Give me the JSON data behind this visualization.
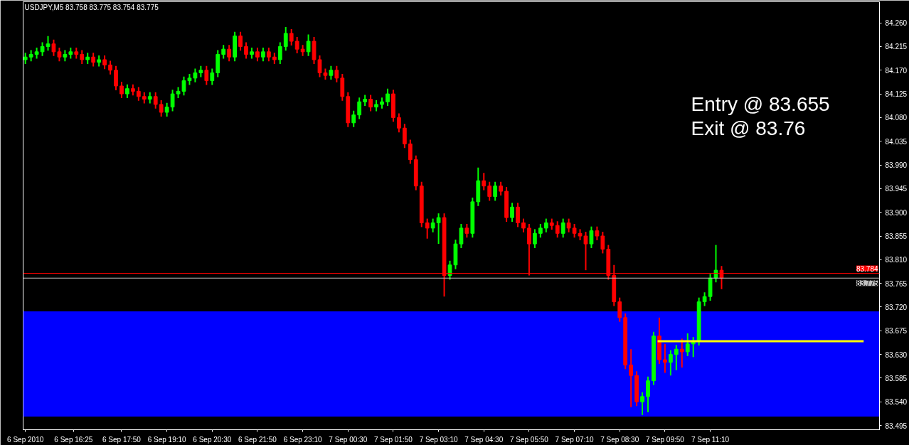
{
  "chart_data": {
    "type": "candlestick",
    "title": "USDJPY,M5 83.758 83.775 83.754 83.775",
    "annotations": [
      "Entry @ 83.655",
      "Exit @ 83.76"
    ],
    "xlim": [
      "2010-09-06T14:56",
      "2010-09-07T16:09"
    ],
    "ylim": [
      83.487,
      84.3
    ],
    "xticks": [
      {
        "value": "2010-09-06T15:00",
        "label": "6 Sep 2010"
      },
      {
        "value": "2010-09-06T16:25",
        "label": "6 Sep 16:25"
      },
      {
        "value": "2010-09-06T17:50",
        "label": "6 Sep 17:50"
      },
      {
        "value": "2010-09-06T19:10",
        "label": "6 Sep 19:10"
      },
      {
        "value": "2010-09-06T20:30",
        "label": "6 Sep 20:30"
      },
      {
        "value": "2010-09-06T21:50",
        "label": "6 Sep 21:50"
      },
      {
        "value": "2010-09-06T23:10",
        "label": "6 Sep 23:10"
      },
      {
        "value": "2010-09-07T00:30",
        "label": "7 Sep 00:30"
      },
      {
        "value": "2010-09-07T01:50",
        "label": "7 Sep 01:50"
      },
      {
        "value": "2010-09-07T03:10",
        "label": "7 Sep 03:10"
      },
      {
        "value": "2010-09-07T04:30",
        "label": "7 Sep 04:30"
      },
      {
        "value": "2010-09-07T05:50",
        "label": "7 Sep 05:50"
      },
      {
        "value": "2010-09-07T07:10",
        "label": "7 Sep 07:10"
      },
      {
        "value": "2010-09-07T08:30",
        "label": "7 Sep 08:30"
      },
      {
        "value": "2010-09-07T09:50",
        "label": "7 Sep 09:50"
      },
      {
        "value": "2010-09-07T11:10",
        "label": "7 Sep 11:10"
      }
    ],
    "yticks": [
      {
        "value": 83.495,
        "label": "83.495"
      },
      {
        "value": 83.54,
        "label": "83.540"
      },
      {
        "value": 83.585,
        "label": "83.585"
      },
      {
        "value": 83.63,
        "label": "83.630"
      },
      {
        "value": 83.675,
        "label": "83.675"
      },
      {
        "value": 83.72,
        "label": "83.720"
      },
      {
        "value": 83.765,
        "label": "83.765"
      },
      {
        "value": 83.81,
        "label": "83.810"
      },
      {
        "value": 83.855,
        "label": "83.855"
      },
      {
        "value": 83.9,
        "label": "83.900"
      },
      {
        "value": 83.945,
        "label": "83.945"
      },
      {
        "value": 83.99,
        "label": "83.990"
      },
      {
        "value": 84.035,
        "label": "84.035"
      },
      {
        "value": 84.08,
        "label": "84.080"
      },
      {
        "value": 84.125,
        "label": "84.125"
      },
      {
        "value": 84.17,
        "label": "84.170"
      },
      {
        "value": 84.215,
        "label": "84.215"
      },
      {
        "value": 84.26,
        "label": "84.260"
      }
    ],
    "grid": false,
    "bands": [
      {
        "axis": "y",
        "from": 83.512,
        "to": 83.712,
        "color": "#0000ff"
      }
    ],
    "ref_lines": [
      {
        "axis": "y",
        "value": 83.784,
        "label": "83.784",
        "color": "#ff0000"
      },
      {
        "axis": "y",
        "value": 83.775,
        "label": "83.775",
        "color": "#c0c0c0"
      }
    ],
    "series": [
      {
        "type": "candlestick",
        "x": [
          "2010-09-06T15:00",
          "2010-09-06T15:10",
          "2010-09-06T15:20",
          "2010-09-06T15:30",
          "2010-09-06T15:40",
          "2010-09-06T15:50",
          "2010-09-06T16:00",
          "2010-09-06T16:10",
          "2010-09-06T16:20",
          "2010-09-06T16:30",
          "2010-09-06T16:40",
          "2010-09-06T16:50",
          "2010-09-06T17:00",
          "2010-09-06T17:10",
          "2010-09-06T17:20",
          "2010-09-06T17:30",
          "2010-09-06T17:40",
          "2010-09-06T17:50",
          "2010-09-06T18:00",
          "2010-09-06T18:10",
          "2010-09-06T18:20",
          "2010-09-06T18:30",
          "2010-09-06T18:40",
          "2010-09-06T18:50",
          "2010-09-06T19:00",
          "2010-09-06T19:10",
          "2010-09-06T19:20",
          "2010-09-06T19:30",
          "2010-09-06T19:40",
          "2010-09-06T19:50",
          "2010-09-06T20:00",
          "2010-09-06T20:10",
          "2010-09-06T20:20",
          "2010-09-06T20:30",
          "2010-09-06T20:40",
          "2010-09-06T20:50",
          "2010-09-06T21:00",
          "2010-09-06T21:10",
          "2010-09-06T21:20",
          "2010-09-06T21:30",
          "2010-09-06T21:40",
          "2010-09-06T21:50",
          "2010-09-06T22:00",
          "2010-09-06T22:10",
          "2010-09-06T22:20",
          "2010-09-06T22:30",
          "2010-09-06T22:40",
          "2010-09-06T22:50",
          "2010-09-06T23:00",
          "2010-09-06T23:10",
          "2010-09-06T23:20",
          "2010-09-06T23:30",
          "2010-09-06T23:40",
          "2010-09-06T23:50",
          "2010-09-07T00:00",
          "2010-09-07T00:10",
          "2010-09-07T00:20",
          "2010-09-07T00:30",
          "2010-09-07T00:40",
          "2010-09-07T00:50",
          "2010-09-07T01:00",
          "2010-09-07T01:10",
          "2010-09-07T01:20",
          "2010-09-07T01:30",
          "2010-09-07T01:40",
          "2010-09-07T01:50",
          "2010-09-07T02:00",
          "2010-09-07T02:10",
          "2010-09-07T02:20",
          "2010-09-07T02:30",
          "2010-09-07T02:40",
          "2010-09-07T02:50",
          "2010-09-07T03:00",
          "2010-09-07T03:10",
          "2010-09-07T03:20",
          "2010-09-07T03:30",
          "2010-09-07T03:40",
          "2010-09-07T03:50",
          "2010-09-07T04:00",
          "2010-09-07T04:10",
          "2010-09-07T04:20",
          "2010-09-07T04:30",
          "2010-09-07T04:40",
          "2010-09-07T04:50",
          "2010-09-07T05:00",
          "2010-09-07T05:10",
          "2010-09-07T05:20",
          "2010-09-07T05:30",
          "2010-09-07T05:40",
          "2010-09-07T05:50",
          "2010-09-07T06:00",
          "2010-09-07T06:10",
          "2010-09-07T06:20",
          "2010-09-07T06:30",
          "2010-09-07T06:40",
          "2010-09-07T06:50",
          "2010-09-07T07:00",
          "2010-09-07T07:10",
          "2010-09-07T07:20",
          "2010-09-07T07:30",
          "2010-09-07T07:40",
          "2010-09-07T07:50",
          "2010-09-07T08:00",
          "2010-09-07T08:10",
          "2010-09-07T08:20",
          "2010-09-07T08:30",
          "2010-09-07T08:40",
          "2010-09-07T08:50",
          "2010-09-07T09:00",
          "2010-09-07T09:10",
          "2010-09-07T09:20",
          "2010-09-07T09:30",
          "2010-09-07T09:40",
          "2010-09-07T09:50",
          "2010-09-07T10:00",
          "2010-09-07T10:10",
          "2010-09-07T10:20",
          "2010-09-07T10:30",
          "2010-09-07T10:40",
          "2010-09-07T10:50",
          "2010-09-07T11:00",
          "2010-09-07T11:10",
          "2010-09-07T11:20",
          "2010-09-07T11:30"
        ],
        "ohlc": [
          [
            84.19,
            84.203,
            84.182,
            84.195
          ],
          [
            84.195,
            84.208,
            84.187,
            84.2
          ],
          [
            84.2,
            84.213,
            84.192,
            84.205
          ],
          [
            84.205,
            84.223,
            84.197,
            84.215
          ],
          [
            84.215,
            84.235,
            84.207,
            84.22
          ],
          [
            84.22,
            84.228,
            84.197,
            84.205
          ],
          [
            84.205,
            84.213,
            84.187,
            84.195
          ],
          [
            84.195,
            84.208,
            84.187,
            84.2
          ],
          [
            84.2,
            84.213,
            84.192,
            84.205
          ],
          [
            84.205,
            84.213,
            84.192,
            84.2
          ],
          [
            84.2,
            84.208,
            84.182,
            84.19
          ],
          [
            84.19,
            84.203,
            84.182,
            84.195
          ],
          [
            84.195,
            84.203,
            84.177,
            84.185
          ],
          [
            84.185,
            84.198,
            84.177,
            84.19
          ],
          [
            84.19,
            84.198,
            84.172,
            84.18
          ],
          [
            84.18,
            84.188,
            84.162,
            84.17
          ],
          [
            84.17,
            84.178,
            84.132,
            84.14
          ],
          [
            84.14,
            84.148,
            84.117,
            84.125
          ],
          [
            84.125,
            84.143,
            84.117,
            84.135
          ],
          [
            84.135,
            84.143,
            84.122,
            84.13
          ],
          [
            84.13,
            84.138,
            84.112,
            84.12
          ],
          [
            84.12,
            84.128,
            84.107,
            84.115
          ],
          [
            84.115,
            84.128,
            84.107,
            84.12
          ],
          [
            84.12,
            84.128,
            84.097,
            84.105
          ],
          [
            84.105,
            84.113,
            84.082,
            84.09
          ],
          [
            84.09,
            84.108,
            84.082,
            84.1
          ],
          [
            84.1,
            84.133,
            84.092,
            84.125
          ],
          [
            84.125,
            84.138,
            84.117,
            84.13
          ],
          [
            84.13,
            84.158,
            84.122,
            84.15
          ],
          [
            84.15,
            84.163,
            84.142,
            84.155
          ],
          [
            84.155,
            84.173,
            84.147,
            84.165
          ],
          [
            84.165,
            84.178,
            84.157,
            84.17
          ],
          [
            84.17,
            84.178,
            84.142,
            84.15
          ],
          [
            84.15,
            84.173,
            84.142,
            84.165
          ],
          [
            84.165,
            84.208,
            84.157,
            84.2
          ],
          [
            84.2,
            84.218,
            84.192,
            84.21
          ],
          [
            84.21,
            84.218,
            84.187,
            84.195
          ],
          [
            84.195,
            84.243,
            84.187,
            84.235
          ],
          [
            84.235,
            84.243,
            84.207,
            84.215
          ],
          [
            84.215,
            84.223,
            84.192,
            84.2
          ],
          [
            84.2,
            84.213,
            84.192,
            84.205
          ],
          [
            84.205,
            84.213,
            84.187,
            84.195
          ],
          [
            84.195,
            84.213,
            84.187,
            84.205
          ],
          [
            84.205,
            84.213,
            84.187,
            84.195
          ],
          [
            84.195,
            84.203,
            84.182,
            84.19
          ],
          [
            84.19,
            84.223,
            84.182,
            84.215
          ],
          [
            84.215,
            84.252,
            84.207,
            84.24
          ],
          [
            84.24,
            84.248,
            84.217,
            84.225
          ],
          [
            84.225,
            84.233,
            84.202,
            84.21
          ],
          [
            84.21,
            84.218,
            84.197,
            84.205
          ],
          [
            84.205,
            84.238,
            84.197,
            84.225
          ],
          [
            84.225,
            84.233,
            84.182,
            84.19
          ],
          [
            84.19,
            84.198,
            84.157,
            84.165
          ],
          [
            84.165,
            84.173,
            84.152,
            84.16
          ],
          [
            84.16,
            84.178,
            84.152,
            84.17
          ],
          [
            84.17,
            84.178,
            84.147,
            84.155
          ],
          [
            84.155,
            84.163,
            84.112,
            84.12
          ],
          [
            84.12,
            84.128,
            84.062,
            84.07
          ],
          [
            84.07,
            84.093,
            84.062,
            84.085
          ],
          [
            84.085,
            84.118,
            84.077,
            84.11
          ],
          [
            84.11,
            84.123,
            84.102,
            84.115
          ],
          [
            84.115,
            84.123,
            84.092,
            84.1
          ],
          [
            84.1,
            84.113,
            84.092,
            84.105
          ],
          [
            84.105,
            84.118,
            84.097,
            84.11
          ],
          [
            84.11,
            84.135,
            84.102,
            84.125
          ],
          [
            84.125,
            84.133,
            84.072,
            84.08
          ],
          [
            84.08,
            84.088,
            84.052,
            84.06
          ],
          [
            84.06,
            84.068,
            84.022,
            84.03
          ],
          [
            84.03,
            84.038,
            83.992,
            84.0
          ],
          [
            84.0,
            84.008,
            83.942,
            83.95
          ],
          [
            83.95,
            83.958,
            83.872,
            83.88
          ],
          [
            83.88,
            83.888,
            83.85,
            83.87
          ],
          [
            83.87,
            83.888,
            83.862,
            83.88
          ],
          [
            83.88,
            83.898,
            83.84,
            83.89
          ],
          [
            83.89,
            83.898,
            83.74,
            83.78
          ],
          [
            83.78,
            83.808,
            83.772,
            83.8
          ],
          [
            83.8,
            83.848,
            83.792,
            83.84
          ],
          [
            83.84,
            83.878,
            83.832,
            83.87
          ],
          [
            83.87,
            83.878,
            83.852,
            83.86
          ],
          [
            83.86,
            83.928,
            83.852,
            83.92
          ],
          [
            83.92,
            83.985,
            83.912,
            83.96
          ],
          [
            83.96,
            83.975,
            83.942,
            83.95
          ],
          [
            83.95,
            83.958,
            83.922,
            83.93
          ],
          [
            83.93,
            83.958,
            83.922,
            83.95
          ],
          [
            83.95,
            83.958,
            83.932,
            83.94
          ],
          [
            83.94,
            83.948,
            83.882,
            83.89
          ],
          [
            83.89,
            83.918,
            83.882,
            83.91
          ],
          [
            83.91,
            83.918,
            83.872,
            83.88
          ],
          [
            83.88,
            83.888,
            83.862,
            83.87
          ],
          [
            83.87,
            83.878,
            83.78,
            83.84
          ],
          [
            83.84,
            83.868,
            83.832,
            83.86
          ],
          [
            83.86,
            83.878,
            83.852,
            83.87
          ],
          [
            83.87,
            83.888,
            83.862,
            83.88
          ],
          [
            83.88,
            83.888,
            83.867,
            83.875
          ],
          [
            83.875,
            83.883,
            83.852,
            83.86
          ],
          [
            83.86,
            83.888,
            83.852,
            83.88
          ],
          [
            83.88,
            83.888,
            83.862,
            83.87
          ],
          [
            83.87,
            83.878,
            83.852,
            83.86
          ],
          [
            83.86,
            83.868,
            83.847,
            83.855
          ],
          [
            83.855,
            83.863,
            83.79,
            83.84
          ],
          [
            83.84,
            83.873,
            83.832,
            83.865
          ],
          [
            83.865,
            83.873,
            83.847,
            83.855
          ],
          [
            83.855,
            83.863,
            83.822,
            83.83
          ],
          [
            83.83,
            83.838,
            83.772,
            83.78
          ],
          [
            83.78,
            83.8,
            83.722,
            83.73
          ],
          [
            83.73,
            83.738,
            83.692,
            83.7
          ],
          [
            83.7,
            83.708,
            83.602,
            83.61
          ],
          [
            83.61,
            83.64,
            83.53,
            83.59
          ],
          [
            83.59,
            83.598,
            83.532,
            83.54
          ],
          [
            83.54,
            83.558,
            83.515,
            83.55
          ],
          [
            83.55,
            83.588,
            83.52,
            83.58
          ],
          [
            83.58,
            83.673,
            83.572,
            83.665
          ],
          [
            83.665,
            83.7,
            83.612,
            83.62
          ],
          [
            83.62,
            83.65,
            83.595,
            83.615
          ],
          [
            83.615,
            83.638,
            83.59,
            83.63
          ],
          [
            83.63,
            83.648,
            83.6,
            83.64
          ],
          [
            83.64,
            83.66,
            83.605,
            83.635
          ],
          [
            83.635,
            83.67,
            83.627,
            83.65
          ],
          [
            83.65,
            83.663,
            83.625,
            83.655
          ],
          [
            83.655,
            83.738,
            83.647,
            83.73
          ],
          [
            83.73,
            83.748,
            83.722,
            83.74
          ],
          [
            83.74,
            83.783,
            83.732,
            83.775
          ],
          [
            83.775,
            83.838,
            83.767,
            83.79
          ],
          [
            83.79,
            83.798,
            83.754,
            83.775
          ]
        ],
        "colors": [
          "#00ff00",
          "#00ff00",
          "#00ff00",
          "#00ff00",
          "#00ff00",
          "#ff0000",
          "#ff0000",
          "#00ff00",
          "#00ff00",
          "#ff0000",
          "#ff0000",
          "#00ff00",
          "#ff0000",
          "#00ff00",
          "#ff0000",
          "#ff0000",
          "#ff0000",
          "#ff0000",
          "#00ff00",
          "#ff0000",
          "#ff0000",
          "#ff0000",
          "#00ff00",
          "#ff0000",
          "#ff0000",
          "#00ff00",
          "#00ff00",
          "#00ff00",
          "#00ff00",
          "#00ff00",
          "#00ff00",
          "#00ff00",
          "#ff0000",
          "#00ff00",
          "#00ff00",
          "#00ff00",
          "#ff0000",
          "#00ff00",
          "#ff0000",
          "#ff0000",
          "#00ff00",
          "#ff0000",
          "#00ff00",
          "#ff0000",
          "#ff0000",
          "#00ff00",
          "#00ff00",
          "#ff0000",
          "#ff0000",
          "#ff0000",
          "#00ff00",
          "#ff0000",
          "#ff0000",
          "#ff0000",
          "#00ff00",
          "#ff0000",
          "#ff0000",
          "#ff0000",
          "#00ff00",
          "#00ff00",
          "#00ff00",
          "#ff0000",
          "#00ff00",
          "#00ff00",
          "#00ff00",
          "#ff0000",
          "#ff0000",
          "#ff0000",
          "#ff0000",
          "#ff0000",
          "#ff0000",
          "#ff0000",
          "#00ff00",
          "#00ff00",
          "#ff0000",
          "#00ff00",
          "#00ff00",
          "#00ff00",
          "#ff0000",
          "#00ff00",
          "#00ff00",
          "#ff0000",
          "#ff0000",
          "#00ff00",
          "#ff0000",
          "#ff0000",
          "#00ff00",
          "#ff0000",
          "#ff0000",
          "#ff0000",
          "#00ff00",
          "#00ff00",
          "#00ff00",
          "#ff0000",
          "#ff0000",
          "#00ff00",
          "#ff0000",
          "#ff0000",
          "#ff0000",
          "#ff0000",
          "#00ff00",
          "#ff0000",
          "#ff0000",
          "#ff0000",
          "#ff0000",
          "#ff0000",
          "#ff0000",
          "#ff0000",
          "#ff0000",
          "#00ff00",
          "#00ff00",
          "#00ff00",
          "#ff0000",
          "#ff0000",
          "#00ff00",
          "#00ff00",
          "#ff0000",
          "#00ff00",
          "#00ff00",
          "#00ff00",
          "#00ff00",
          "#00ff00",
          "#00ff00",
          "#ff0000"
        ]
      },
      {
        "type": "line",
        "x": [
          "2010-09-07T09:37",
          "2010-09-07T15:41"
        ],
        "values": [
          83.655,
          83.655
        ],
        "color": "#ffff00"
      }
    ]
  }
}
